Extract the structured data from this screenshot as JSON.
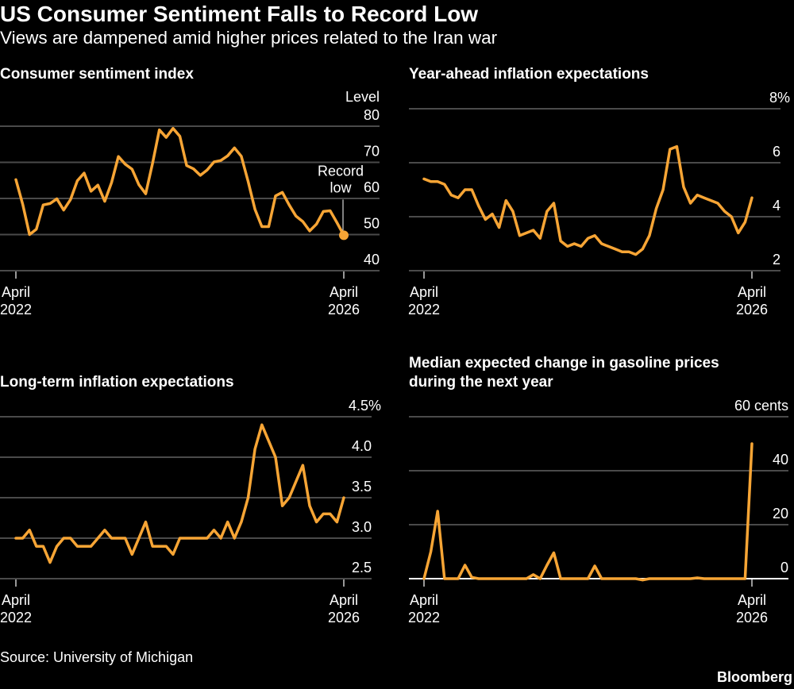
{
  "header": {
    "title": "US Consumer Sentiment Falls to Record Low",
    "subtitle": "Views are dampened amid higher prices related to the Iran war"
  },
  "footer": {
    "source": "Source: University of Michigan",
    "brand": "Bloomberg"
  },
  "colors": {
    "line": "#f7a535",
    "grid": "#4a4a4a",
    "background": "#000000",
    "text": "#ffffff"
  },
  "chart_data": [
    {
      "type": "line",
      "title": "Consumer sentiment index",
      "unit_label": "Level",
      "ylim": [
        40,
        80
      ],
      "yticks": [
        80,
        70,
        60,
        50,
        40
      ],
      "ytick_labels": [
        "80",
        "70",
        "60",
        "50",
        "40"
      ],
      "xlabels": [
        [
          "April",
          "2022"
        ],
        [
          "April",
          "2026"
        ]
      ],
      "x_range": [
        "2022-04",
        "2026-04"
      ],
      "annotation": {
        "text": [
          "Record",
          "low"
        ],
        "point": "last"
      },
      "values": [
        65.2,
        58.4,
        50.0,
        51.5,
        58.2,
        58.6,
        59.9,
        56.8,
        59.7,
        64.9,
        67.0,
        62.0,
        63.7,
        59.2,
        64.4,
        71.6,
        69.5,
        68.1,
        63.8,
        61.3,
        69.7,
        79.0,
        76.9,
        79.4,
        77.2,
        69.1,
        68.2,
        66.4,
        67.9,
        70.1,
        70.5,
        71.8,
        74.0,
        71.7,
        64.7,
        57.0,
        52.2,
        52.2,
        60.7,
        61.7,
        58.2,
        55.1,
        53.6,
        51.0,
        52.9,
        56.4,
        56.6,
        53.3,
        49.8
      ]
    },
    {
      "type": "line",
      "title": "Year-ahead inflation expectations",
      "unit_label": "",
      "ylim": [
        2,
        8
      ],
      "yticks": [
        8,
        6,
        4,
        2
      ],
      "ytick_labels": [
        "8%",
        "6",
        "4",
        "2"
      ],
      "xlabels": [
        [
          "April",
          "2022"
        ],
        [
          "April",
          "2026"
        ]
      ],
      "x_range": [
        "2022-04",
        "2026-04"
      ],
      "values": [
        5.4,
        5.3,
        5.3,
        5.2,
        4.8,
        4.7,
        5.0,
        5.0,
        4.4,
        3.9,
        4.1,
        3.6,
        4.6,
        4.2,
        3.3,
        3.4,
        3.5,
        3.2,
        4.2,
        4.5,
        3.1,
        2.9,
        3.0,
        2.9,
        3.2,
        3.3,
        3.0,
        2.9,
        2.8,
        2.7,
        2.7,
        2.6,
        2.8,
        3.3,
        4.3,
        5.0,
        6.5,
        6.6,
        5.1,
        4.5,
        4.8,
        4.7,
        4.6,
        4.5,
        4.2,
        4.0,
        3.4,
        3.8,
        4.7
      ]
    },
    {
      "type": "line",
      "title": "Long-term inflation expectations",
      "unit_label": "",
      "ylim": [
        2.5,
        4.5
      ],
      "yticks": [
        4.5,
        4.0,
        3.5,
        3.0,
        2.5
      ],
      "ytick_labels": [
        "4.5%",
        "4.0",
        "3.5",
        "3.0",
        "2.5"
      ],
      "xlabels": [
        [
          "April",
          "2022"
        ],
        [
          "April",
          "2026"
        ]
      ],
      "x_range": [
        "2022-04",
        "2026-04"
      ],
      "values": [
        3.0,
        3.0,
        3.1,
        2.9,
        2.9,
        2.7,
        2.9,
        3.0,
        3.0,
        2.9,
        2.9,
        2.9,
        3.0,
        3.1,
        3.0,
        3.0,
        3.0,
        2.8,
        3.0,
        3.2,
        2.9,
        2.9,
        2.9,
        2.8,
        3.0,
        3.0,
        3.0,
        3.0,
        3.0,
        3.1,
        3.0,
        3.2,
        3.0,
        3.2,
        3.5,
        4.1,
        4.4,
        4.2,
        4.0,
        3.4,
        3.5,
        3.7,
        3.9,
        3.4,
        3.2,
        3.3,
        3.3,
        3.2,
        3.5
      ]
    },
    {
      "type": "line",
      "title": "Median expected change in gasoline prices during the next year",
      "title_lines": [
        "Median expected change in gasoline prices",
        "during the next year"
      ],
      "unit_label": "",
      "ylim": [
        0,
        60
      ],
      "yticks": [
        60,
        40,
        20,
        0
      ],
      "ytick_labels": [
        "60 cents",
        "40",
        "20",
        "0"
      ],
      "xlabels": [
        [
          "April",
          "2022"
        ],
        [
          "April",
          "2026"
        ]
      ],
      "x_range": [
        "2022-04",
        "2026-04"
      ],
      "values": [
        0,
        10,
        25,
        0,
        0,
        0,
        5,
        0.5,
        0,
        0,
        0,
        0,
        0,
        0,
        0,
        0,
        1.5,
        0,
        5,
        9.6,
        0,
        0,
        0,
        0,
        0,
        4.7,
        0,
        0,
        0,
        0,
        0,
        0,
        -0.5,
        0,
        0,
        0,
        0,
        0,
        0,
        0,
        0.3,
        0,
        0,
        0,
        0,
        0,
        0,
        0,
        50
      ]
    }
  ]
}
